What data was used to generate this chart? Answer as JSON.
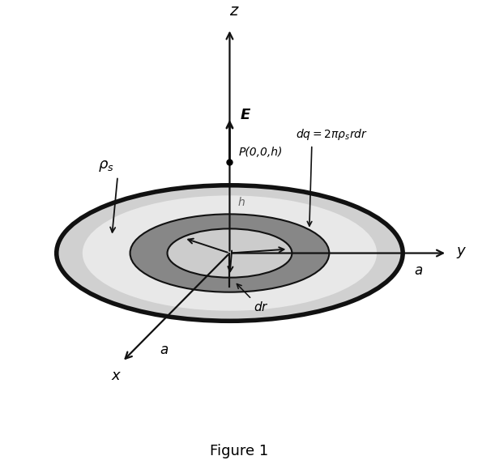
{
  "fig_width": 5.9,
  "fig_height": 5.84,
  "dpi": 100,
  "bg_color": "#ffffff",
  "title": "Figure 1",
  "title_fontsize": 13,
  "z_label": "z",
  "y_label": "y",
  "x_label": "x",
  "a_label": "a",
  "point_label": "P(0,0,h)",
  "E_label": "E",
  "h_label": "h",
  "dq_label": "dq = 2πρ_s rdr",
  "dr_label": "dr",
  "disk_fill_outer": "#d0d0d0",
  "disk_fill_inner": "#e8e8e8",
  "ring_fill": "#878787",
  "ring_hole_fill": "#d0d0d0",
  "disk_edge_color": "#111111",
  "disk_edge_lw": 4.0,
  "ring_edge_lw": 1.5,
  "axis_lw": 1.6,
  "arrow_lw": 1.4
}
